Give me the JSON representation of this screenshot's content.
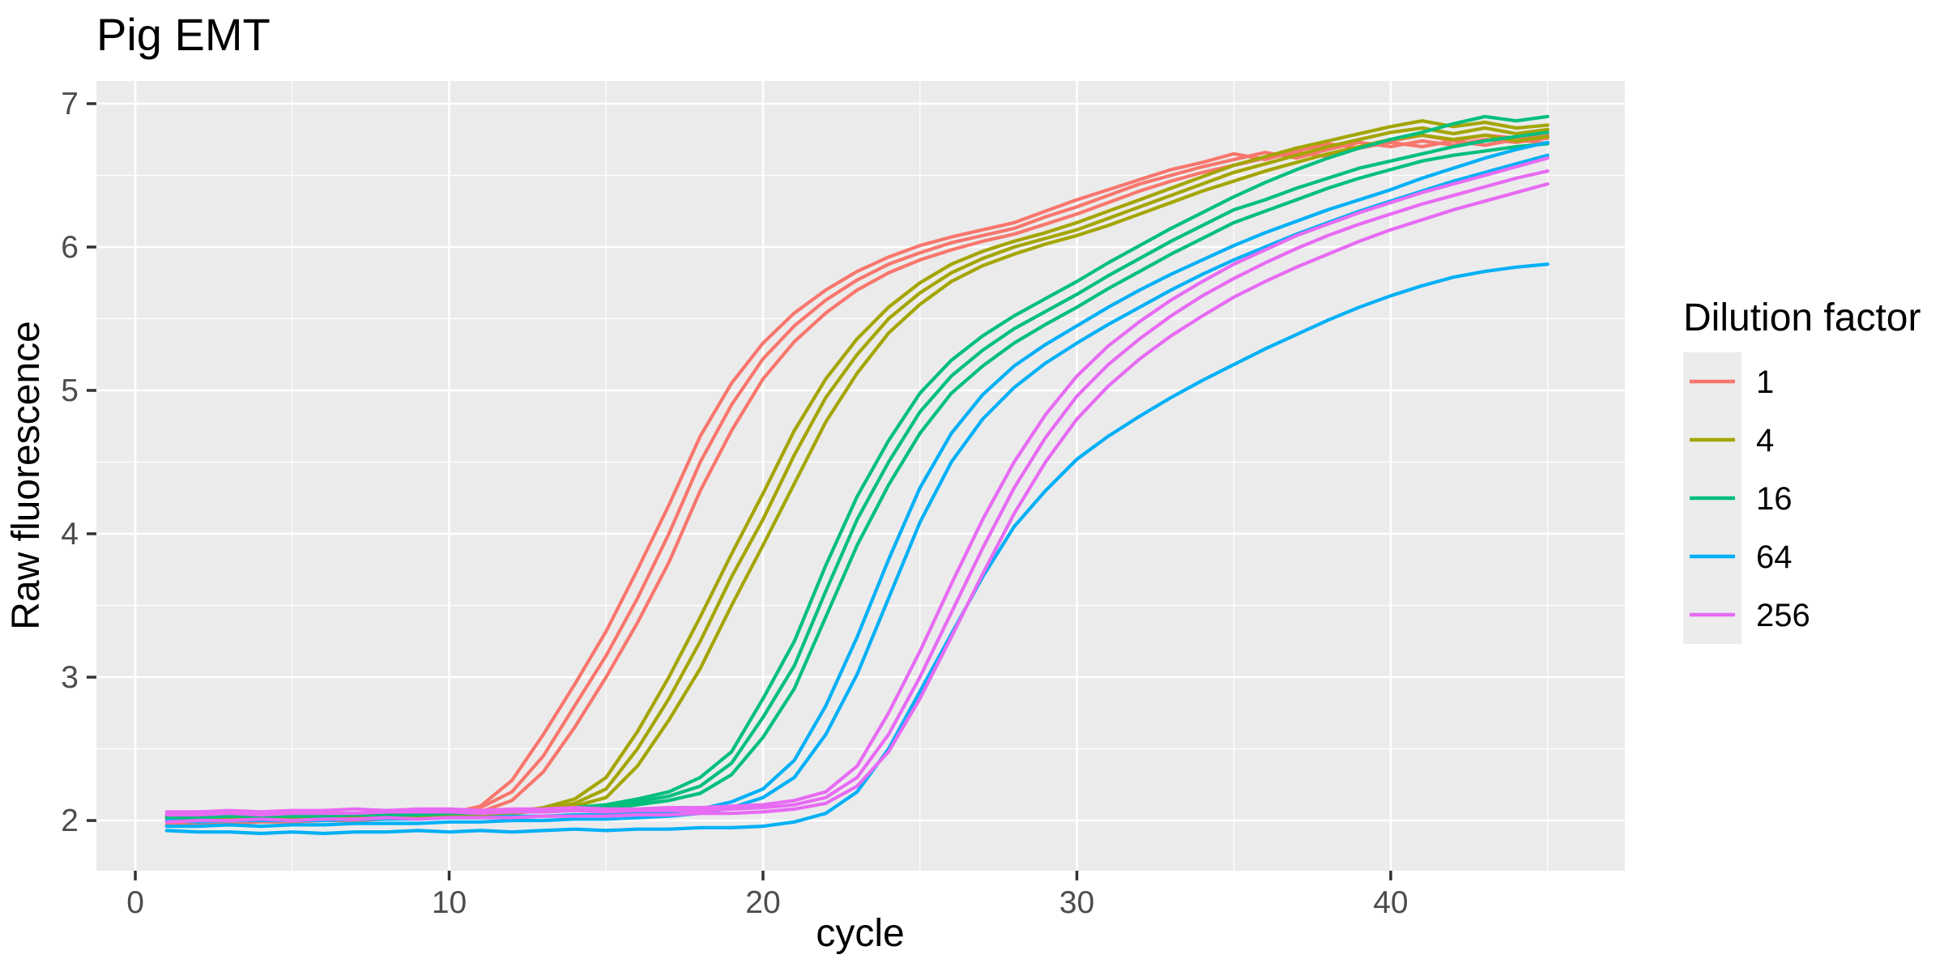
{
  "title": "Pig EMT",
  "axes": {
    "x": {
      "label": "cycle",
      "major_ticks": [
        0,
        10,
        20,
        30,
        40
      ],
      "minor_ticks": [
        5,
        15,
        25,
        35,
        45
      ],
      "range": [
        -1.24,
        47.46
      ]
    },
    "y": {
      "label": "Raw fluorescence",
      "major_ticks": [
        2,
        3,
        4,
        5,
        6,
        7
      ],
      "minor_ticks": [
        2.5,
        3.5,
        4.5,
        5.5,
        6.5
      ],
      "range": [
        1.65,
        7.158
      ]
    }
  },
  "panel": {
    "background": "#EBEBEB",
    "grid_color": "#FFFFFF",
    "tick_color": "#333333"
  },
  "legend": {
    "title": "Dilution factor",
    "key_fill": "#ECECEC",
    "entries": [
      {
        "label": "1",
        "color": "#F8766D"
      },
      {
        "label": "4",
        "color": "#A3A500"
      },
      {
        "label": "16",
        "color": "#00BF7D"
      },
      {
        "label": "64",
        "color": "#00B0F6"
      },
      {
        "label": "256",
        "color": "#E76BF3"
      }
    ]
  },
  "chart_data": {
    "type": "line",
    "title": "Pig EMT",
    "xlabel": "cycle",
    "ylabel": "Raw fluorescence",
    "legend_title": "Dilution factor",
    "legend_position": "right",
    "grid": "major+minor",
    "xlim": [
      -1.24,
      47.46
    ],
    "ylim": [
      1.65,
      7.158
    ],
    "x": [
      1,
      2,
      3,
      4,
      5,
      6,
      7,
      8,
      9,
      10,
      11,
      12,
      13,
      14,
      15,
      16,
      17,
      18,
      19,
      20,
      21,
      22,
      23,
      24,
      25,
      26,
      27,
      28,
      29,
      30,
      31,
      32,
      33,
      34,
      35,
      36,
      37,
      38,
      39,
      40,
      41,
      42,
      43,
      44,
      45
    ],
    "series": [
      {
        "name": "dilution 1 rep A",
        "dilution": "1",
        "color": "#F8766D",
        "values": [
          1.99,
          2.0,
          2.0,
          2.0,
          2.0,
          2.01,
          2.01,
          2.02,
          2.03,
          2.05,
          2.1,
          2.28,
          2.6,
          2.95,
          3.32,
          3.75,
          4.2,
          4.68,
          5.05,
          5.33,
          5.54,
          5.7,
          5.83,
          5.93,
          6.01,
          6.07,
          6.12,
          6.17,
          6.25,
          6.33,
          6.4,
          6.47,
          6.54,
          6.59,
          6.65,
          6.61,
          6.67,
          6.72,
          6.69,
          6.74,
          6.78,
          6.74,
          6.78,
          6.76,
          6.78
        ]
      },
      {
        "name": "dilution 1 rep B",
        "dilution": "1",
        "color": "#F8766D",
        "values": [
          2.02,
          2.02,
          2.03,
          2.02,
          2.03,
          2.03,
          2.04,
          2.04,
          2.05,
          2.06,
          2.09,
          2.2,
          2.45,
          2.8,
          3.15,
          3.55,
          4.0,
          4.5,
          4.9,
          5.22,
          5.45,
          5.63,
          5.77,
          5.88,
          5.96,
          6.03,
          6.08,
          6.13,
          6.21,
          6.28,
          6.36,
          6.44,
          6.5,
          6.56,
          6.61,
          6.66,
          6.62,
          6.68,
          6.73,
          6.7,
          6.74,
          6.71,
          6.75,
          6.73,
          6.76
        ]
      },
      {
        "name": "dilution 1 rep C",
        "dilution": "1",
        "color": "#F8766D",
        "values": [
          1.97,
          1.98,
          1.98,
          1.99,
          1.99,
          2.0,
          2.0,
          2.01,
          2.02,
          2.03,
          2.06,
          2.14,
          2.34,
          2.65,
          3.0,
          3.38,
          3.8,
          4.3,
          4.72,
          5.08,
          5.34,
          5.54,
          5.7,
          5.82,
          5.91,
          5.98,
          6.04,
          6.09,
          6.16,
          6.23,
          6.31,
          6.39,
          6.46,
          6.52,
          6.57,
          6.62,
          6.66,
          6.63,
          6.69,
          6.73,
          6.7,
          6.74,
          6.71,
          6.75,
          6.72
        ]
      },
      {
        "name": "dilution 4 rep A",
        "dilution": "4",
        "color": "#A3A500",
        "values": [
          2.01,
          2.01,
          2.02,
          2.02,
          2.02,
          2.02,
          2.03,
          2.03,
          2.04,
          2.04,
          2.05,
          2.06,
          2.09,
          2.15,
          2.3,
          2.62,
          3.0,
          3.42,
          3.86,
          4.28,
          4.72,
          5.08,
          5.36,
          5.58,
          5.75,
          5.88,
          5.97,
          6.04,
          6.1,
          6.17,
          6.25,
          6.33,
          6.41,
          6.49,
          6.57,
          6.63,
          6.69,
          6.74,
          6.79,
          6.84,
          6.88,
          6.84,
          6.87,
          6.83,
          6.85
        ]
      },
      {
        "name": "dilution 4 rep B",
        "dilution": "4",
        "color": "#A3A500",
        "values": [
          2.02,
          2.02,
          2.02,
          2.03,
          2.02,
          2.03,
          2.03,
          2.04,
          2.04,
          2.05,
          2.05,
          2.06,
          2.08,
          2.12,
          2.22,
          2.5,
          2.85,
          3.25,
          3.7,
          4.1,
          4.55,
          4.95,
          5.25,
          5.5,
          5.68,
          5.82,
          5.92,
          6.0,
          6.06,
          6.12,
          6.2,
          6.28,
          6.36,
          6.44,
          6.52,
          6.58,
          6.64,
          6.7,
          6.75,
          6.8,
          6.83,
          6.79,
          6.83,
          6.79,
          6.82
        ]
      },
      {
        "name": "dilution 4 rep C",
        "dilution": "4",
        "color": "#A3A500",
        "values": [
          2.0,
          2.01,
          2.01,
          2.01,
          2.02,
          2.02,
          2.02,
          2.03,
          2.03,
          2.04,
          2.04,
          2.05,
          2.07,
          2.1,
          2.16,
          2.38,
          2.7,
          3.06,
          3.5,
          3.92,
          4.35,
          4.78,
          5.12,
          5.4,
          5.6,
          5.76,
          5.87,
          5.95,
          6.02,
          6.08,
          6.15,
          6.23,
          6.31,
          6.39,
          6.46,
          6.53,
          6.59,
          6.65,
          6.7,
          6.75,
          6.78,
          6.75,
          6.78,
          6.74,
          6.77
        ]
      },
      {
        "name": "dilution 16 rep A",
        "dilution": "16",
        "color": "#00BF7D",
        "values": [
          2.04,
          2.04,
          2.04,
          2.05,
          2.04,
          2.05,
          2.05,
          2.05,
          2.06,
          2.06,
          2.06,
          2.07,
          2.07,
          2.09,
          2.11,
          2.15,
          2.2,
          2.3,
          2.48,
          2.85,
          3.25,
          3.78,
          4.26,
          4.65,
          4.98,
          5.21,
          5.38,
          5.52,
          5.64,
          5.76,
          5.89,
          6.01,
          6.13,
          6.24,
          6.35,
          6.45,
          6.54,
          6.62,
          6.69,
          6.75,
          6.8,
          6.86,
          6.91,
          6.88,
          6.91
        ]
      },
      {
        "name": "dilution 16 rep B",
        "dilution": "16",
        "color": "#00BF7D",
        "values": [
          2.03,
          2.03,
          2.03,
          2.04,
          2.03,
          2.04,
          2.04,
          2.04,
          2.05,
          2.05,
          2.06,
          2.06,
          2.07,
          2.08,
          2.1,
          2.13,
          2.17,
          2.24,
          2.4,
          2.72,
          3.08,
          3.6,
          4.1,
          4.5,
          4.85,
          5.1,
          5.28,
          5.43,
          5.55,
          5.67,
          5.8,
          5.92,
          6.04,
          6.15,
          6.26,
          6.33,
          6.41,
          6.48,
          6.55,
          6.6,
          6.65,
          6.7,
          6.74,
          6.77,
          6.8
        ]
      },
      {
        "name": "dilution 16 rep C",
        "dilution": "16",
        "color": "#00BF7D",
        "values": [
          2.02,
          2.02,
          2.03,
          2.03,
          2.03,
          2.03,
          2.04,
          2.04,
          2.04,
          2.05,
          2.05,
          2.06,
          2.06,
          2.07,
          2.08,
          2.11,
          2.14,
          2.19,
          2.32,
          2.58,
          2.92,
          3.42,
          3.92,
          4.34,
          4.7,
          4.98,
          5.17,
          5.33,
          5.46,
          5.58,
          5.71,
          5.83,
          5.95,
          6.06,
          6.17,
          6.25,
          6.33,
          6.41,
          6.48,
          6.54,
          6.6,
          6.64,
          6.67,
          6.7,
          6.72
        ]
      },
      {
        "name": "dilution 64 rep A",
        "dilution": "64",
        "color": "#00B0F6",
        "values": [
          2.0,
          1.99,
          2.0,
          2.0,
          2.0,
          2.0,
          2.01,
          2.01,
          2.01,
          2.02,
          2.02,
          2.03,
          2.03,
          2.04,
          2.04,
          2.05,
          2.06,
          2.08,
          2.13,
          2.22,
          2.42,
          2.8,
          3.28,
          3.82,
          4.32,
          4.7,
          4.97,
          5.17,
          5.32,
          5.45,
          5.58,
          5.7,
          5.81,
          5.91,
          6.01,
          6.1,
          6.18,
          6.26,
          6.33,
          6.4,
          6.48,
          6.55,
          6.62,
          6.68,
          6.73
        ]
      },
      {
        "name": "dilution 64 rep B",
        "dilution": "64",
        "color": "#00B0F6",
        "values": [
          1.96,
          1.96,
          1.97,
          1.96,
          1.97,
          1.97,
          1.98,
          1.98,
          1.98,
          1.99,
          1.99,
          2.0,
          2.0,
          2.01,
          2.01,
          2.02,
          2.03,
          2.05,
          2.09,
          2.16,
          2.3,
          2.6,
          3.02,
          3.55,
          4.08,
          4.5,
          4.8,
          5.02,
          5.19,
          5.33,
          5.46,
          5.58,
          5.7,
          5.81,
          5.91,
          6.0,
          6.09,
          6.17,
          6.25,
          6.32,
          6.39,
          6.46,
          6.52,
          6.58,
          6.64
        ]
      },
      {
        "name": "dilution 64 rep C",
        "dilution": "64",
        "color": "#00B0F6",
        "values": [
          1.93,
          1.92,
          1.92,
          1.91,
          1.92,
          1.91,
          1.92,
          1.92,
          1.93,
          1.92,
          1.93,
          1.92,
          1.93,
          1.94,
          1.93,
          1.94,
          1.94,
          1.95,
          1.95,
          1.96,
          1.99,
          2.05,
          2.2,
          2.5,
          2.9,
          3.3,
          3.7,
          4.05,
          4.3,
          4.52,
          4.68,
          4.82,
          4.95,
          5.07,
          5.18,
          5.29,
          5.39,
          5.49,
          5.58,
          5.66,
          5.73,
          5.79,
          5.83,
          5.86,
          5.88
        ]
      },
      {
        "name": "dilution 256 rep A",
        "dilution": "256",
        "color": "#E76BF3",
        "values": [
          2.06,
          2.06,
          2.07,
          2.06,
          2.07,
          2.07,
          2.08,
          2.07,
          2.08,
          2.08,
          2.07,
          2.08,
          2.08,
          2.09,
          2.08,
          2.08,
          2.09,
          2.09,
          2.1,
          2.11,
          2.14,
          2.2,
          2.38,
          2.75,
          3.18,
          3.65,
          4.1,
          4.5,
          4.83,
          5.1,
          5.31,
          5.48,
          5.63,
          5.76,
          5.88,
          5.98,
          6.08,
          6.16,
          6.24,
          6.31,
          6.38,
          6.44,
          6.5,
          6.56,
          6.62
        ]
      },
      {
        "name": "dilution 256 rep B",
        "dilution": "256",
        "color": "#E76BF3",
        "values": [
          2.04,
          2.04,
          2.05,
          2.04,
          2.05,
          2.05,
          2.05,
          2.06,
          2.06,
          2.06,
          2.05,
          2.06,
          2.06,
          2.07,
          2.06,
          2.07,
          2.07,
          2.07,
          2.08,
          2.09,
          2.11,
          2.16,
          2.3,
          2.6,
          3.0,
          3.45,
          3.9,
          4.32,
          4.67,
          4.96,
          5.18,
          5.36,
          5.52,
          5.66,
          5.78,
          5.89,
          5.99,
          6.08,
          6.16,
          6.23,
          6.3,
          6.36,
          6.42,
          6.48,
          6.53
        ]
      },
      {
        "name": "dilution 256 rep C",
        "dilution": "256",
        "color": "#E76BF3",
        "values": [
          1.99,
          2.0,
          2.0,
          2.01,
          2.0,
          2.01,
          2.01,
          2.02,
          2.01,
          2.02,
          2.02,
          2.02,
          2.03,
          2.03,
          2.03,
          2.04,
          2.04,
          2.05,
          2.05,
          2.06,
          2.08,
          2.12,
          2.24,
          2.48,
          2.85,
          3.28,
          3.72,
          4.14,
          4.5,
          4.8,
          5.03,
          5.22,
          5.38,
          5.52,
          5.65,
          5.76,
          5.86,
          5.95,
          6.04,
          6.12,
          6.19,
          6.26,
          6.32,
          6.38,
          6.44
        ]
      }
    ]
  }
}
